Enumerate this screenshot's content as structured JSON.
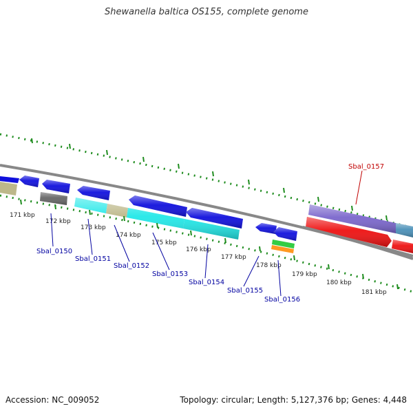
{
  "title": "Shewanella baltica OS155, complete genome",
  "footer": {
    "accession": "Accession: NC_009052",
    "topology": "Topology: circular; Length: 5,127,376 bp; Genes: 4,448"
  },
  "colors": {
    "background": "#ffffff",
    "backbone": "#888888",
    "tick": "#1e8c1e",
    "forward_label": "#c00000",
    "reverse_label": "#0000a0",
    "cds_blue": "#1010dd",
    "cds_cyan": "#22e8e8",
    "cds_khaki": "#bdb88a",
    "cds_gray": "#666666",
    "cds_red": "#ee1111",
    "cds_purple": "#7a66cc",
    "cds_steel": "#4a90b8",
    "cds_green": "#33cc44",
    "cds_orange": "#ff9922"
  },
  "scale_labels": [
    "171 kbp",
    "172 kbp",
    "173 kbp",
    "174 kbp",
    "175 kbp",
    "176 kbp",
    "177 kbp",
    "178 kbp",
    "179 kbp",
    "180 kbp",
    "181 kbp"
  ],
  "genes": [
    {
      "name": "Sbal_0150",
      "strand": "reverse"
    },
    {
      "name": "Sbal_0151",
      "strand": "reverse"
    },
    {
      "name": "Sbal_0152",
      "strand": "reverse"
    },
    {
      "name": "Sbal_0153",
      "strand": "reverse"
    },
    {
      "name": "Sbal_0154",
      "strand": "reverse"
    },
    {
      "name": "Sbal_0155",
      "strand": "reverse"
    },
    {
      "name": "Sbal_0156",
      "strand": "reverse"
    },
    {
      "name": "Sbal_0157",
      "strand": "forward"
    }
  ]
}
